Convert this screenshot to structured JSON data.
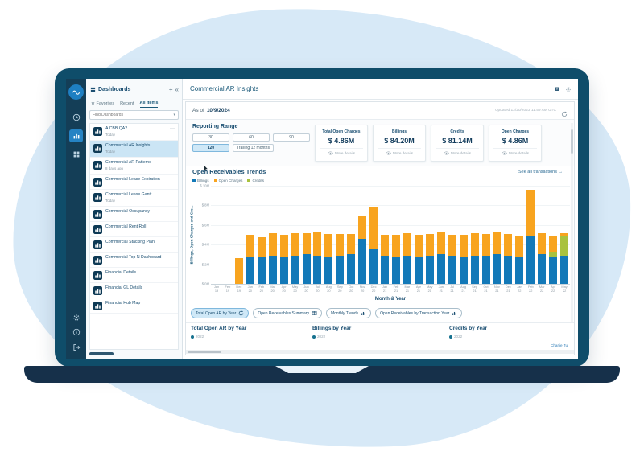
{
  "colors": {
    "accent_blue": "#1379B8",
    "orange": "#F8A41F",
    "green": "#A9C23F",
    "navy_text": "#1B4F72",
    "bezel": "#0F4D6A",
    "rail": "#143E57",
    "active_tint": "#CFE8F7",
    "blob": "#D7E9F7"
  },
  "sidebar": {
    "title": "Dashboards",
    "add_label": "+",
    "collapse_label": "«",
    "search_placeholder": "Find Dashboards",
    "search_chevron": "▾",
    "tabs": [
      {
        "label": "Favorites",
        "star": true,
        "active": false
      },
      {
        "label": "Recent",
        "active": false
      },
      {
        "label": "All Items",
        "active": true
      }
    ],
    "items": [
      {
        "label": "A CBB QA2",
        "subtitle": "Today",
        "menu": true
      },
      {
        "label": "Commercial AR Insights",
        "subtitle": "Today",
        "active": true
      },
      {
        "label": "Commercial AR Patterns",
        "subtitle": "8 days ago"
      },
      {
        "label": "Commercial Lease Expiration"
      },
      {
        "label": "Commercial Lease Gantt",
        "subtitle": "Today"
      },
      {
        "label": "Commercial Occupancy"
      },
      {
        "label": "Commercial Rent Roll"
      },
      {
        "label": "Commercial Stacking Plan"
      },
      {
        "label": "Commercial Top N Dashboard"
      },
      {
        "label": "Financial Details"
      },
      {
        "label": "Financial GL Details"
      },
      {
        "label": "Financial Hub Map"
      }
    ]
  },
  "header": {
    "title": "Commercial AR Insights"
  },
  "asof": {
    "label": "As of",
    "date": "10/9/2024",
    "updated": "Updated 12/20/2023 11:59 AM UTC"
  },
  "reporting_range": {
    "title": "Reporting Range",
    "options": [
      {
        "label": "30",
        "row": 1,
        "active": false
      },
      {
        "label": "60",
        "row": 1,
        "active": false
      },
      {
        "label": "90",
        "row": 1,
        "active": false
      },
      {
        "label": "120",
        "row": 2,
        "active": true
      },
      {
        "label": "Trailing 12 months",
        "row": 2,
        "active": false
      }
    ]
  },
  "kpis": [
    {
      "title": "Total Open Charges",
      "value": "$ 4.86M",
      "link": "More details"
    },
    {
      "title": "Billings",
      "value": "$ 84.20M",
      "link": "More details"
    },
    {
      "title": "Credits",
      "value": "$ 81.14M",
      "link": "More details"
    },
    {
      "title": "Open Charges",
      "value": "$ 4.86M",
      "link": "More details"
    }
  ],
  "trends": {
    "title": "Open Receivables Trends",
    "see_all": "See all transactions",
    "arrow": "→",
    "xlabel": "Month & Year",
    "ylabel": "Billings, Open Charges and Cre..."
  },
  "chart_data": {
    "type": "bar",
    "stacked": true,
    "title": "Open Receivables Trends",
    "xlabel": "Month & Year",
    "ylabel": "Billings, Open Charges and Credits ($M)",
    "ylim": [
      0,
      10
    ],
    "ytick_labels": [
      "$ 10M",
      "$ 8M",
      "$ 6M",
      "$ 4M",
      "$ 2M",
      "$ 0M"
    ],
    "grid": true,
    "legend_position": "top-left",
    "legend": [
      {
        "label": "Billings",
        "color": "#1379B8"
      },
      {
        "label": "Open Charges",
        "color": "#F8A41F"
      },
      {
        "label": "Credits",
        "color": "#A9C23F"
      }
    ],
    "categories": [
      "Jan 19",
      "Feb 19",
      "Dec 19",
      "Jan 20",
      "Feb 20",
      "Mar 20",
      "Apr 20",
      "May 20",
      "Jun 20",
      "Jul 20",
      "Aug 20",
      "Sep 20",
      "Oct 20",
      "Nov 20",
      "Dec 20",
      "Jan 21",
      "Feb 21",
      "Mar 21",
      "Apr 21",
      "May 21",
      "Jun 21",
      "Jul 21",
      "Aug 21",
      "Sep 21",
      "Oct 21",
      "Nov 21",
      "Dec 21",
      "Jan 22",
      "Feb 22",
      "Mar 22",
      "Apr 22",
      "May 22"
    ],
    "series": [
      {
        "name": "Billings",
        "color": "#1379B8",
        "values": [
          0,
          0,
          0,
          2.8,
          2.7,
          2.9,
          2.8,
          2.9,
          3.0,
          2.9,
          2.8,
          2.9,
          3.0,
          4.6,
          3.5,
          2.9,
          2.8,
          2.9,
          2.8,
          2.9,
          3.0,
          2.9,
          2.8,
          2.9,
          2.9,
          3.0,
          2.9,
          2.8,
          4.9,
          3.0,
          2.8,
          2.9
        ]
      },
      {
        "name": "Credits",
        "color": "#A9C23F",
        "values": [
          0,
          0,
          0,
          0,
          0,
          0,
          0,
          0,
          0,
          0,
          0,
          0,
          0,
          0,
          0,
          0,
          0,
          0,
          0,
          0,
          0,
          0,
          0,
          0,
          0,
          0,
          0,
          0,
          0,
          0,
          0.5,
          2.0
        ]
      },
      {
        "name": "Open Charges",
        "color": "#F8A41F",
        "values": [
          0,
          0,
          2.6,
          2.2,
          2.1,
          2.3,
          2.2,
          2.3,
          2.2,
          2.4,
          2.3,
          2.2,
          2.1,
          2.4,
          4.3,
          2.1,
          2.2,
          2.3,
          2.2,
          2.2,
          2.3,
          2.1,
          2.2,
          2.3,
          2.2,
          2.3,
          2.2,
          2.1,
          4.7,
          2.2,
          1.6,
          0.3
        ]
      }
    ]
  },
  "toolbar": {
    "buttons": [
      {
        "label": "Total Open AR by Year",
        "icon": "cycle",
        "active": true
      },
      {
        "label": "Open Receivables Summary",
        "icon": "table",
        "active": false
      },
      {
        "label": "Monthly Trends",
        "icon": "chart",
        "active": false
      },
      {
        "label": "Open Receivables by Transaction Year",
        "icon": "chart",
        "active": false
      }
    ]
  },
  "bottom_sections": [
    {
      "title": "Total Open AR by Year",
      "legend": "2022"
    },
    {
      "title": "Billings by Year",
      "legend": "2022"
    },
    {
      "title": "Credits by Year",
      "legend": "2022"
    }
  ],
  "footer": {
    "credit": "Charlie Tu"
  }
}
